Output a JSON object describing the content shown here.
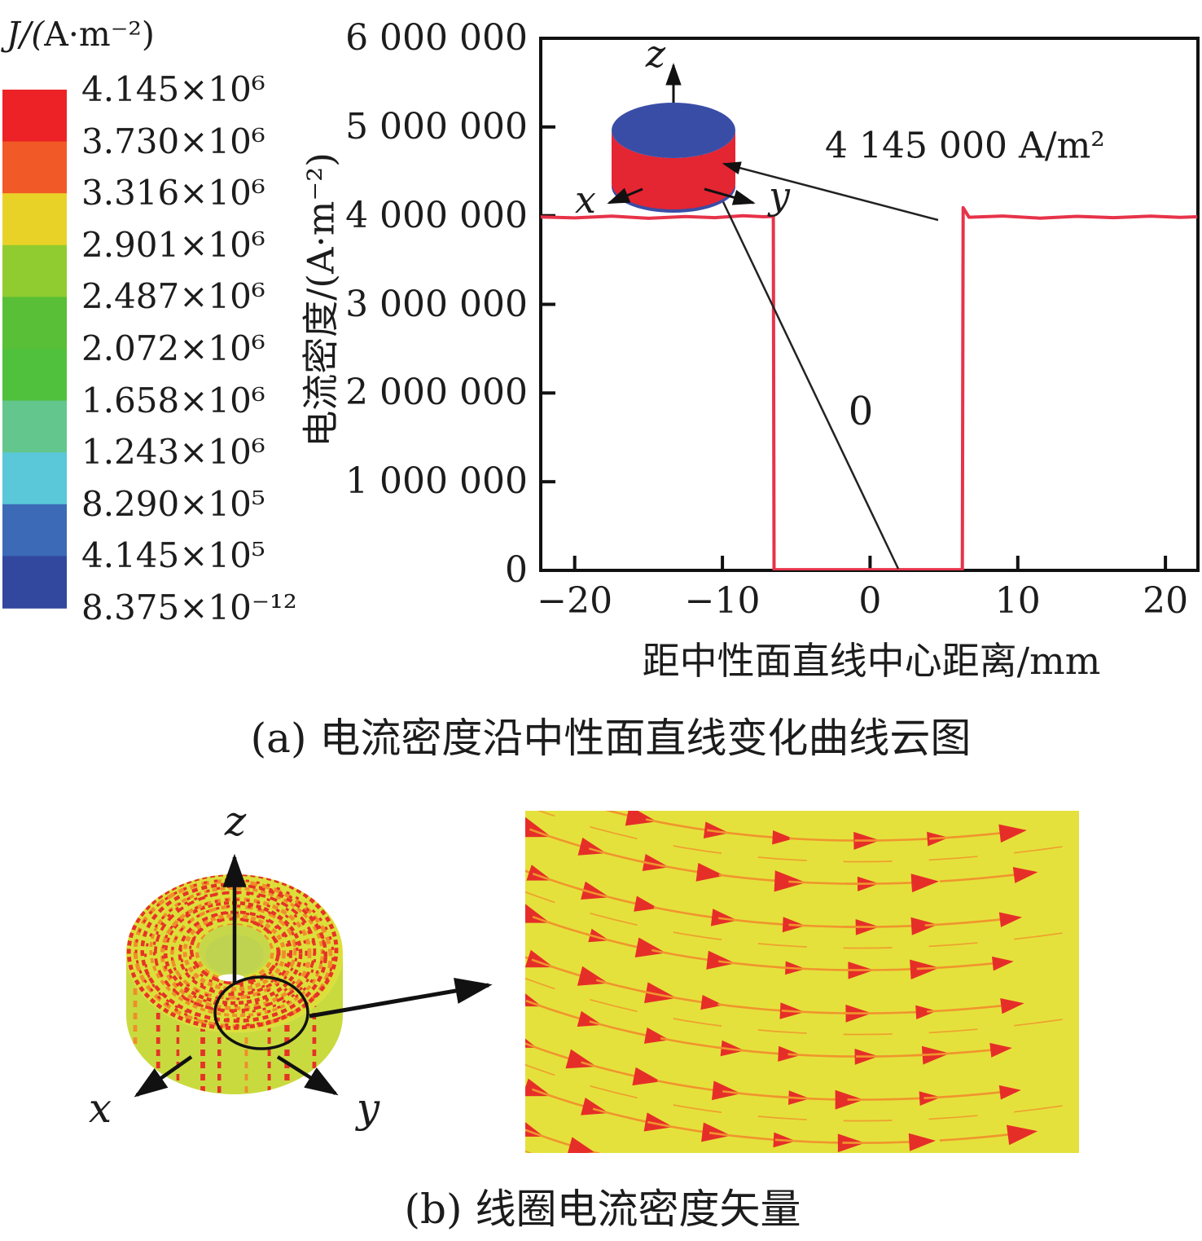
{
  "figure": {
    "background": "#ffffff"
  },
  "legend": {
    "title": "J/(A·m⁻²)",
    "values": [
      "4.145×10⁶",
      "3.730×10⁶",
      "3.316×10⁶",
      "2.901×10⁶",
      "2.487×10⁶",
      "2.072×10⁶",
      "1.658×10⁶",
      "1.243×10⁶",
      "8.290×10⁵",
      "4.145×10⁵",
      "8.375×10⁻¹²"
    ],
    "band_colors": [
      "#ec2227",
      "#f15a26",
      "#e9d227",
      "#90cc2f",
      "#58bf36",
      "#4fc13c",
      "#63c68c",
      "#5ac8d8",
      "#3c6ab7",
      "#32489e"
    ]
  },
  "chart_data": {
    "type": "line",
    "title": "",
    "xlabel": "距中性面直线中心距离/mm",
    "ylabel": "电流密度/(A·m⁻²)",
    "xlim": [
      -22.3,
      22.2
    ],
    "ylim": [
      0,
      6000000
    ],
    "grid": false,
    "x_ticks": [
      -20,
      -10,
      0,
      10,
      20
    ],
    "x_tick_labels": [
      "−20",
      "−10",
      "0",
      "10",
      "20"
    ],
    "y_ticks": [
      0,
      1000000,
      2000000,
      3000000,
      4000000,
      5000000,
      6000000
    ],
    "y_tick_labels": [
      "0",
      "1 000 000",
      "2 000 000",
      "3 000 000",
      "4 000 000",
      "5 000 000",
      "6 000 000"
    ],
    "series": [
      {
        "name": "电流密度",
        "color": "#e73349",
        "points": [
          [
            -22.3,
            3985000
          ],
          [
            -20,
            3975000
          ],
          [
            -17.5,
            3995000
          ],
          [
            -15,
            3970000
          ],
          [
            -12.5,
            3990000
          ],
          [
            -10.5,
            3978000
          ],
          [
            -8.6,
            4000000
          ],
          [
            -7.2,
            3988000
          ],
          [
            -6.55,
            3992000
          ],
          [
            -6.5,
            8000
          ],
          [
            6.25,
            8000
          ],
          [
            6.3,
            4090000
          ],
          [
            6.7,
            3982000
          ],
          [
            9,
            3996000
          ],
          [
            11.5,
            3972000
          ],
          [
            14,
            3992000
          ],
          [
            16.5,
            3978000
          ],
          [
            19,
            3994000
          ],
          [
            21,
            3980000
          ],
          [
            22.15,
            3988000
          ]
        ]
      }
    ],
    "annotations": [
      {
        "text": "4 145 000 A/m²",
        "meaning": "plateau current density value"
      },
      {
        "text": "0",
        "meaning": "current density in the gap"
      }
    ]
  },
  "inset": {
    "axis_x": "x",
    "axis_y": "y",
    "axis_z": "z",
    "top_color": "#3a4da6",
    "side_color": "#e42532"
  },
  "captions": {
    "a": "(a) 电流密度沿中性面直线变化曲线云图",
    "b": "(b) 线圈电流密度矢量"
  },
  "coil": {
    "axis_x": "x",
    "axis_y": "y",
    "axis_z": "z",
    "body_color": "#c9da3f",
    "top_color": "#dcdf3a",
    "stripe_red": "#e63326",
    "stripe_orange": "#ef8e2b",
    "hole_color": "#c6d84a"
  },
  "vector_panel": {
    "background": "#e5e13c",
    "arrow_color": "#e62e28",
    "tail_color": "#f0952d"
  }
}
